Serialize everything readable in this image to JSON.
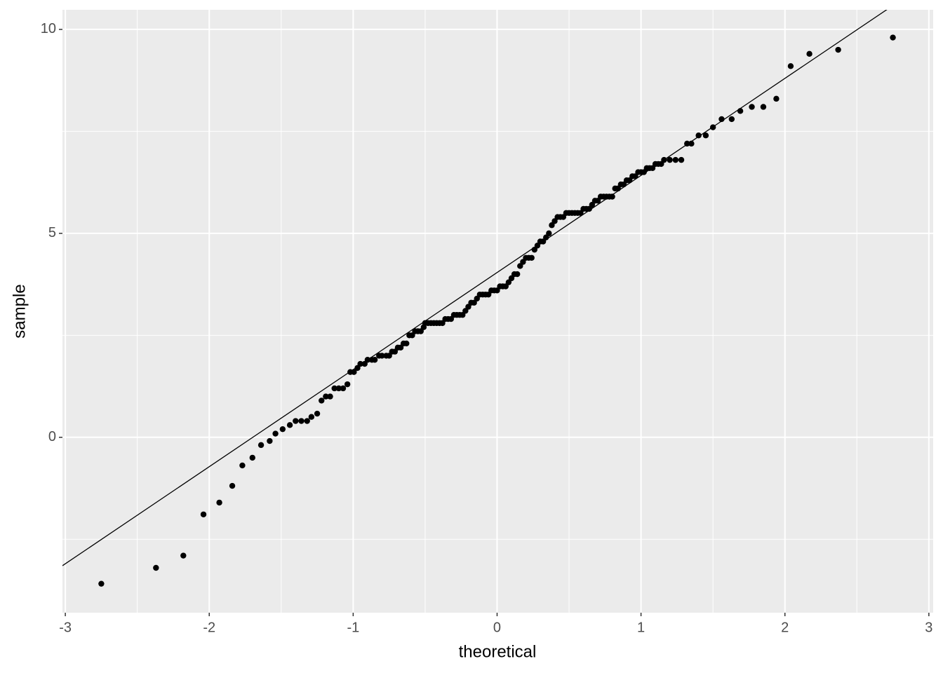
{
  "chart_data": {
    "type": "scatter",
    "xlabel": "theoretical",
    "ylabel": "sample",
    "x": [
      -2.75,
      -2.37,
      -2.18,
      -2.04,
      -1.93,
      -1.84,
      -1.77,
      -1.7,
      -1.64,
      -1.58,
      -1.54,
      -1.49,
      -1.44,
      -1.4,
      -1.36,
      -1.32,
      -1.29,
      -1.25,
      -1.22,
      -1.19,
      -1.16,
      -1.13,
      -1.1,
      -1.07,
      -1.04,
      -1.02,
      -0.995,
      -0.97,
      -0.95,
      -0.92,
      -0.9,
      -0.87,
      -0.85,
      -0.82,
      -0.8,
      -0.77,
      -0.75,
      -0.73,
      -0.71,
      -0.69,
      -0.67,
      -0.65,
      -0.63,
      -0.61,
      -0.59,
      -0.57,
      -0.55,
      -0.53,
      -0.51,
      -0.5,
      -0.48,
      -0.46,
      -0.44,
      -0.42,
      -0.4,
      -0.38,
      -0.36,
      -0.34,
      -0.32,
      -0.3,
      -0.28,
      -0.26,
      -0.24,
      -0.22,
      -0.2,
      -0.18,
      -0.16,
      -0.14,
      -0.12,
      -0.1,
      -0.08,
      -0.06,
      -0.04,
      -0.02,
      0,
      0.02,
      0.04,
      0.06,
      0.08,
      0.1,
      0.12,
      0.14,
      0.16,
      0.18,
      0.2,
      0.22,
      0.24,
      0.26,
      0.28,
      0.3,
      0.32,
      0.34,
      0.36,
      0.38,
      0.4,
      0.42,
      0.44,
      0.46,
      0.48,
      0.5,
      0.52,
      0.54,
      0.56,
      0.58,
      0.6,
      0.62,
      0.64,
      0.66,
      0.68,
      0.7,
      0.72,
      0.74,
      0.76,
      0.78,
      0.8,
      0.82,
      0.84,
      0.86,
      0.88,
      0.9,
      0.92,
      0.94,
      0.96,
      0.98,
      1.0,
      1.02,
      1.04,
      1.06,
      1.08,
      1.1,
      1.12,
      1.14,
      1.16,
      1.2,
      1.24,
      1.28,
      1.32,
      1.35,
      1.4,
      1.45,
      1.5,
      1.56,
      1.63,
      1.69,
      1.77,
      1.85,
      1.94,
      2.04,
      2.17,
      2.37,
      2.75
    ],
    "values": [
      -3.59,
      -3.2,
      -2.9,
      -1.89,
      -1.6,
      -1.19,
      -0.69,
      -0.5,
      -0.19,
      -0.09,
      0.09,
      0.2,
      0.3,
      0.4,
      0.4,
      0.4,
      0.5,
      0.58,
      0.9,
      1.0,
      1.0,
      1.2,
      1.2,
      1.2,
      1.3,
      1.6,
      1.6,
      1.7,
      1.8,
      1.8,
      1.9,
      1.9,
      1.9,
      2.0,
      2.0,
      2.0,
      2.0,
      2.1,
      2.1,
      2.2,
      2.2,
      2.3,
      2.3,
      2.5,
      2.5,
      2.6,
      2.6,
      2.6,
      2.7,
      2.8,
      2.8,
      2.8,
      2.8,
      2.8,
      2.8,
      2.8,
      2.9,
      2.9,
      2.9,
      3.0,
      3.0,
      3.0,
      3.0,
      3.1,
      3.2,
      3.3,
      3.3,
      3.4,
      3.5,
      3.5,
      3.5,
      3.5,
      3.6,
      3.6,
      3.6,
      3.7,
      3.7,
      3.7,
      3.8,
      3.9,
      4.0,
      4.0,
      4.2,
      4.3,
      4.4,
      4.4,
      4.4,
      4.6,
      4.7,
      4.8,
      4.8,
      4.9,
      5.0,
      5.2,
      5.3,
      5.4,
      5.4,
      5.4,
      5.5,
      5.5,
      5.5,
      5.5,
      5.5,
      5.5,
      5.6,
      5.6,
      5.6,
      5.7,
      5.8,
      5.8,
      5.9,
      5.9,
      5.9,
      5.9,
      5.9,
      6.1,
      6.1,
      6.2,
      6.2,
      6.3,
      6.3,
      6.4,
      6.4,
      6.5,
      6.5,
      6.5,
      6.6,
      6.6,
      6.6,
      6.7,
      6.7,
      6.7,
      6.8,
      6.8,
      6.8,
      6.8,
      7.2,
      7.2,
      7.4,
      7.4,
      7.6,
      7.8,
      7.8,
      8.0,
      8.1,
      8.1,
      8.3,
      9.1,
      9.4,
      9.5,
      9.8
    ],
    "color": "#000000",
    "reference_line": {
      "intercept": 4.04,
      "slope": 2.38,
      "color": "#000000"
    },
    "xlim": [
      -3.02,
      3.03
    ],
    "ylim": [
      -4.3,
      10.48
    ],
    "xticks": [
      -3,
      -2,
      -1,
      0,
      1,
      2,
      3
    ],
    "yticks": [
      0,
      5,
      10
    ],
    "minor_xticks": [
      -2.5,
      -1.5,
      -0.5,
      0.5,
      1.5,
      2.5
    ],
    "minor_yticks": [
      -2.5,
      2.5,
      7.5
    ],
    "grid": true,
    "background": "#EBEBEB"
  }
}
